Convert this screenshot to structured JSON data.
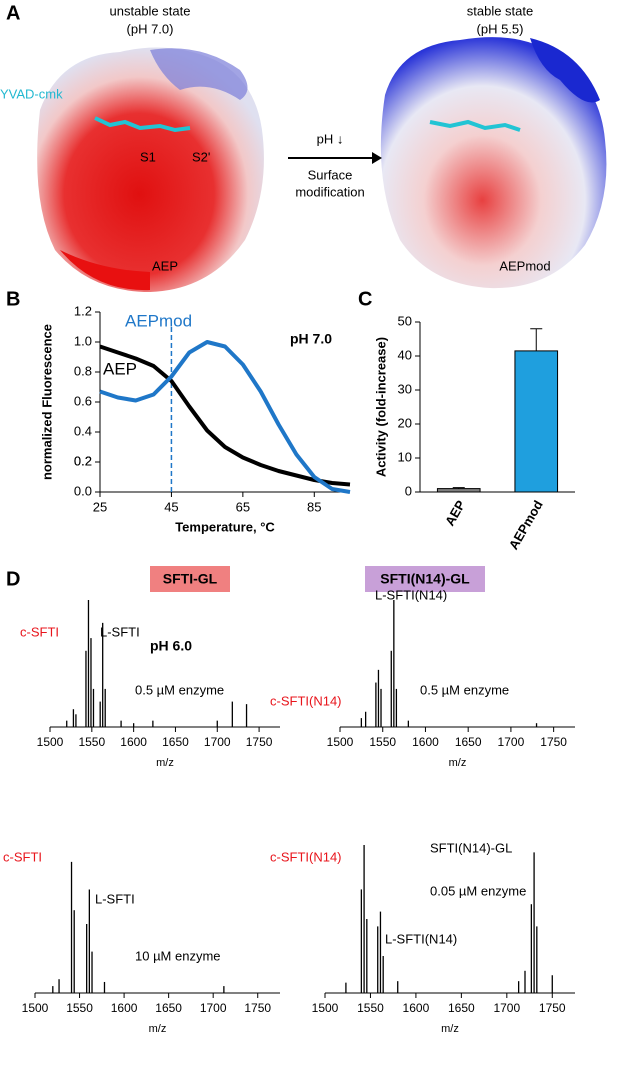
{
  "panel_a": {
    "label": "A",
    "left_title": [
      "unstable state",
      "(pH 7.0)"
    ],
    "ligand": "YVAD-cmk",
    "sites": [
      "S1",
      "S2'"
    ],
    "arrow_text": [
      "pH ↓",
      "Surface",
      "modification"
    ],
    "left_name": "AEP",
    "right_title": [
      "stable state",
      "(pH 5.5)"
    ],
    "right_name": "AEPmod"
  },
  "panel_d": {
    "label": "D",
    "headers": [
      "SFTI-GL",
      "SFTI(N14)-GL"
    ],
    "header_colors": [
      "#f08080",
      "#c8a0d8"
    ],
    "note": "pH 6.0"
  },
  "chart_data": [
    {
      "type": "line",
      "panel_label": "B",
      "annotation": "pH 7.0",
      "xlabel": "Temperature, °C",
      "ylabel": "normalized Fluorescence",
      "x": [
        25,
        30,
        35,
        40,
        45,
        50,
        55,
        60,
        65,
        70,
        75,
        80,
        85,
        90,
        95
      ],
      "series": [
        {
          "name": "AEP",
          "color": "#000000",
          "values": [
            0.97,
            0.93,
            0.89,
            0.84,
            0.74,
            0.57,
            0.41,
            0.3,
            0.23,
            0.18,
            0.14,
            0.11,
            0.08,
            0.06,
            0.05
          ]
        },
        {
          "name": "AEPmod",
          "color": "#1f77c8",
          "values": [
            0.67,
            0.63,
            0.61,
            0.65,
            0.77,
            0.93,
            1.0,
            0.97,
            0.85,
            0.67,
            0.45,
            0.25,
            0.1,
            0.02,
            0.0
          ]
        }
      ],
      "xlim": [
        25,
        95
      ],
      "xticks": [
        25,
        45,
        65,
        85
      ],
      "ylim": [
        0,
        1.2
      ],
      "yticks": [
        {
          "value": 0,
          "label": "0.0"
        },
        0.2,
        0.4,
        0.6,
        0.8,
        {
          "value": 1,
          "label": "1.0"
        },
        0.2,
        {
          "value": 1.2,
          "label": "1.2"
        }
      ],
      "vline": {
        "value": 45,
        "color": "#1f77c8"
      }
    },
    {
      "type": "bar",
      "panel_label": "C",
      "ylabel": "Activity (fold-increase)",
      "categories": [
        "AEP",
        "AEPmod"
      ],
      "values": [
        1,
        41.5
      ],
      "errors": [
        0.3,
        6.5
      ],
      "colors": [
        "#7f7f7f",
        "#1f9fde"
      ],
      "ylim": [
        0,
        50
      ],
      "yticks": [
        0,
        10,
        20,
        30,
        40,
        50
      ]
    },
    {
      "type": "spectrum",
      "xlabel": "m/z",
      "x": [
        1520,
        1528,
        1531,
        1543,
        1546,
        1549,
        1552,
        1560,
        1563,
        1566,
        1585,
        1600,
        1623,
        1700,
        1718,
        1735
      ],
      "values": [
        0.05,
        0.14,
        0.1,
        0.6,
        1.0,
        0.7,
        0.3,
        0.2,
        0.82,
        0.3,
        0.05,
        0.03,
        0.05,
        0.05,
        0.2,
        0.18
      ],
      "xlim": [
        1500,
        1775
      ],
      "xticks": [
        1500,
        1550,
        1600,
        1650,
        1700,
        1750
      ],
      "labels": [
        "c-SFTI",
        "L-SFTI",
        "0.5 µM enzyme"
      ],
      "label_colors": [
        "#e8141b",
        "#000000",
        "#000000"
      ]
    },
    {
      "type": "spectrum",
      "xlabel": "m/z",
      "x": [
        1525,
        1530,
        1542,
        1545,
        1548,
        1560,
        1563,
        1566,
        1580,
        1730
      ],
      "values": [
        0.07,
        0.12,
        0.35,
        0.45,
        0.3,
        0.6,
        1.0,
        0.3,
        0.05,
        0.03
      ],
      "xlim": [
        1500,
        1775
      ],
      "xticks": [
        1500,
        1550,
        1600,
        1650,
        1700,
        1750
      ],
      "labels": [
        "L-SFTI(N14)",
        "c-SFTI(N14)",
        "0.5 µM enzyme"
      ],
      "label_colors": [
        "#000000",
        "#e8141b",
        "#000000"
      ]
    },
    {
      "type": "spectrum",
      "xlabel": "m/z",
      "x": [
        1520,
        1527,
        1541,
        1544,
        1558,
        1561,
        1564,
        1578,
        1712
      ],
      "values": [
        0.05,
        0.1,
        0.95,
        0.6,
        0.5,
        0.75,
        0.3,
        0.08,
        0.05
      ],
      "xlim": [
        1500,
        1775
      ],
      "xticks": [
        1500,
        1550,
        1600,
        1650,
        1700,
        1750
      ],
      "labels": [
        "c-SFTI",
        "L-SFTI",
        "10 µM enzyme"
      ],
      "label_colors": [
        "#e8141b",
        "#000000",
        "#000000"
      ]
    },
    {
      "type": "spectrum",
      "xlabel": "m/z",
      "x": [
        1523,
        1540,
        1543,
        1546,
        1558,
        1561,
        1564,
        1580,
        1713,
        1720,
        1727,
        1730,
        1733,
        1750
      ],
      "values": [
        0.07,
        0.7,
        1.0,
        0.5,
        0.45,
        0.55,
        0.25,
        0.08,
        0.08,
        0.15,
        0.6,
        0.95,
        0.45,
        0.12
      ],
      "xlim": [
        1500,
        1775
      ],
      "xticks": [
        1500,
        1550,
        1600,
        1650,
        1700,
        1750
      ],
      "labels": [
        "c-SFTI(N14)",
        "SFTI(N14)-GL",
        "0.05 µM enzyme",
        "L-SFTI(N14)"
      ],
      "label_colors": [
        "#e8141b",
        "#000000",
        "#000000",
        "#000000"
      ]
    }
  ]
}
